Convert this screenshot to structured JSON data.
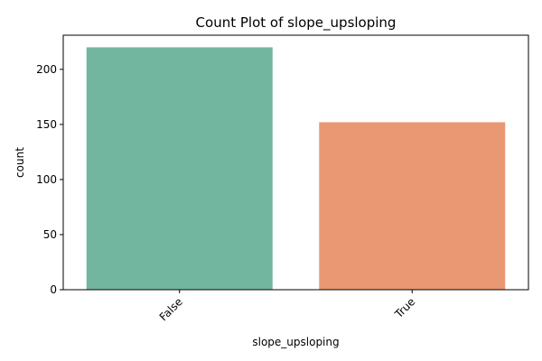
{
  "chart_data": {
    "type": "bar",
    "title": "Count Plot of slope_upsloping",
    "xlabel": "slope_upsloping",
    "ylabel": "count",
    "categories": [
      "False",
      "True"
    ],
    "values": [
      220,
      152
    ],
    "ylim": [
      0,
      231
    ],
    "yticks": [
      0,
      50,
      100,
      150,
      200
    ],
    "bar_colors": [
      "#73b6a0",
      "#ea9873"
    ],
    "grid": false,
    "legend": "none",
    "xtick_rotation": 45
  }
}
